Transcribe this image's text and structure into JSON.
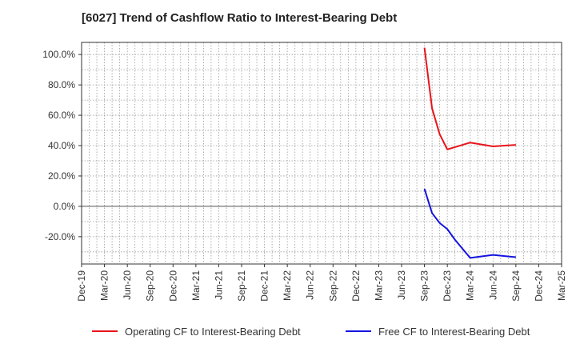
{
  "chart_data": {
    "type": "line",
    "title": "[6027]  Trend of Cashflow Ratio to Interest-Bearing Debt",
    "xlabel": "",
    "ylabel": "",
    "x_tick_labels": [
      "Dec-19",
      "Mar-20",
      "Jun-20",
      "Sep-20",
      "Dec-20",
      "Mar-21",
      "Jun-21",
      "Sep-21",
      "Dec-21",
      "Mar-22",
      "Jun-22",
      "Sep-22",
      "Dec-22",
      "Mar-23",
      "Jun-23",
      "Sep-23",
      "Dec-23",
      "Mar-24",
      "Jun-24",
      "Sep-24",
      "Dec-24",
      "Mar-25"
    ],
    "y_tick_values": [
      -20,
      0,
      20,
      40,
      60,
      80,
      100
    ],
    "y_tick_labels": [
      "-20.0%",
      "0.0%",
      "20.0%",
      "40.0%",
      "60.0%",
      "80.0%",
      "100.0%"
    ],
    "ylim": [
      -38,
      108
    ],
    "grid": true,
    "legend_position": "bottom",
    "series": [
      {
        "name": "Operating CF to Interest-Bearing Debt",
        "color": "#e8141a",
        "x": [
          "2023-09",
          "2023-10",
          "2023-11",
          "2023-12",
          "2024-01",
          "2024-03",
          "2024-06",
          "2024-09"
        ],
        "values": [
          104.5,
          64.5,
          47.5,
          37.5,
          39.0,
          42.0,
          39.5,
          40.5
        ]
      },
      {
        "name": "Free CF to Interest-Bearing Debt",
        "color": "#1414e0",
        "x": [
          "2023-09",
          "2023-10",
          "2023-11",
          "2023-12",
          "2024-01",
          "2024-03",
          "2024-06",
          "2024-09"
        ],
        "values": [
          11.5,
          -4.5,
          -11.0,
          -15.0,
          -22.0,
          -34.0,
          -32.0,
          -33.5
        ]
      }
    ]
  }
}
